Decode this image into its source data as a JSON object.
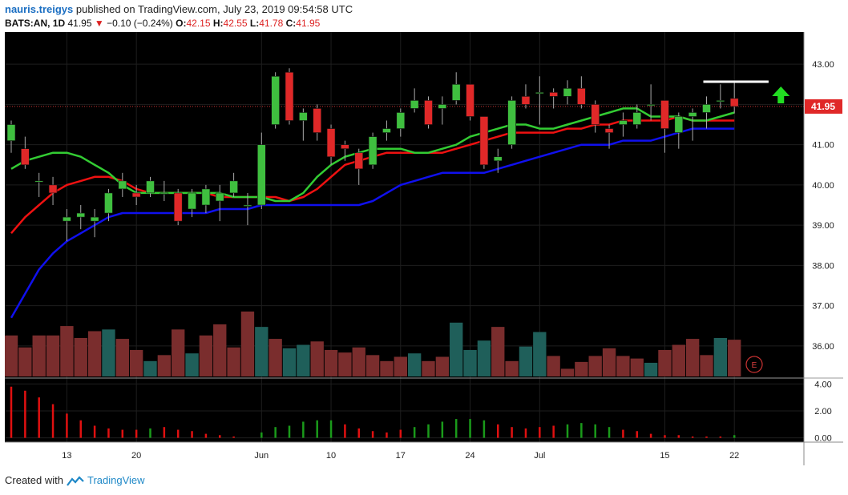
{
  "header": {
    "user": "nauris.treigys",
    "published_text": "published on TradingView.com, July 23, 2019 09:54:58 UTC",
    "symbol": "BATS:AN, 1D",
    "last": "41.95",
    "change": "−0.10 (−0.24%)",
    "open_label": "O:",
    "open": "42.15",
    "high_label": "H:",
    "high": "42.55",
    "low_label": "L:",
    "low": "41.78",
    "close_label": "C:",
    "close": "41.95"
  },
  "footer": {
    "created_with": "Created with",
    "brand": "TradingView"
  },
  "colors": {
    "background": "#000000",
    "up": "#3fbf3f",
    "down": "#e02828",
    "ma_fast": "#33cc33",
    "ma_mid": "#ee1111",
    "ma_slow": "#1010ee",
    "vol_up": "#1f5f5a",
    "vol_down": "#7a2d2d",
    "price_label_bg": "#e02828",
    "resistance_line": "#ffffff",
    "arrow": "#22dd22"
  },
  "chart_data": {
    "type": "candlestick",
    "price_axis": {
      "ticks": [
        "43.00",
        "42.00",
        "41.00",
        "40.00",
        "39.00",
        "38.00",
        "37.00",
        "36.00"
      ],
      "range": [
        35.2,
        43.8
      ]
    },
    "last_price_label": "41.95",
    "x_axis": {
      "labels": [
        {
          "i": 4,
          "text": "13"
        },
        {
          "i": 9,
          "text": "20"
        },
        {
          "i": 18,
          "text": "Jun"
        },
        {
          "i": 23,
          "text": "10"
        },
        {
          "i": 28,
          "text": "17"
        },
        {
          "i": 33,
          "text": "24"
        },
        {
          "i": 38,
          "text": "Jul"
        },
        {
          "i": 47,
          "text": "15"
        },
        {
          "i": 52,
          "text": "22"
        }
      ]
    },
    "candles": [
      [
        41.1,
        41.5,
        40.8,
        41.6
      ],
      [
        40.9,
        40.5,
        40.4,
        41.2
      ],
      [
        40.1,
        40.1,
        39.7,
        40.3
      ],
      [
        40.0,
        39.8,
        39.5,
        40.2
      ],
      [
        39.1,
        39.2,
        38.6,
        39.4
      ],
      [
        39.2,
        39.3,
        38.9,
        39.5
      ],
      [
        39.1,
        39.2,
        38.7,
        39.4
      ],
      [
        39.3,
        39.8,
        39.1,
        39.9
      ],
      [
        39.9,
        40.1,
        39.7,
        40.3
      ],
      [
        39.8,
        39.7,
        39.5,
        40.0
      ],
      [
        39.8,
        40.1,
        39.7,
        40.2
      ],
      [
        39.8,
        39.8,
        39.6,
        40.1
      ],
      [
        39.8,
        39.1,
        39.0,
        39.9
      ],
      [
        39.4,
        39.8,
        39.2,
        39.9
      ],
      [
        39.5,
        39.9,
        39.3,
        40.0
      ],
      [
        39.6,
        39.8,
        39.1,
        40.0
      ],
      [
        39.8,
        40.1,
        39.7,
        40.3
      ],
      [
        39.5,
        39.5,
        39.0,
        39.8
      ],
      [
        39.5,
        41.0,
        39.4,
        41.3
      ],
      [
        41.5,
        42.7,
        41.4,
        42.8
      ],
      [
        42.8,
        41.6,
        41.5,
        42.9
      ],
      [
        41.6,
        41.8,
        41.1,
        41.9
      ],
      [
        41.9,
        41.3,
        41.1,
        42.0
      ],
      [
        41.4,
        40.7,
        40.5,
        41.5
      ],
      [
        41.0,
        40.9,
        40.6,
        41.1
      ],
      [
        40.8,
        40.4,
        40.0,
        40.9
      ],
      [
        40.5,
        41.2,
        40.4,
        41.3
      ],
      [
        41.3,
        41.4,
        41.1,
        41.6
      ],
      [
        41.4,
        41.8,
        41.2,
        41.9
      ],
      [
        41.9,
        42.1,
        41.8,
        42.4
      ],
      [
        42.1,
        41.5,
        41.4,
        42.2
      ],
      [
        41.9,
        42.0,
        41.5,
        42.2
      ],
      [
        42.1,
        42.5,
        42.0,
        42.8
      ],
      [
        42.5,
        41.7,
        41.6,
        42.5
      ],
      [
        41.7,
        40.5,
        40.4,
        41.7
      ],
      [
        40.6,
        40.7,
        40.3,
        40.9
      ],
      [
        41.0,
        42.1,
        40.9,
        42.2
      ],
      [
        42.2,
        42.0,
        41.9,
        42.5
      ],
      [
        42.3,
        42.3,
        41.5,
        42.7
      ],
      [
        42.3,
        42.2,
        41.9,
        42.4
      ],
      [
        42.2,
        42.4,
        42.0,
        42.6
      ],
      [
        42.4,
        42.0,
        41.9,
        42.7
      ],
      [
        42.0,
        41.5,
        41.3,
        42.1
      ],
      [
        41.4,
        41.3,
        40.9,
        41.5
      ],
      [
        41.5,
        41.6,
        41.2,
        41.8
      ],
      [
        41.5,
        41.8,
        41.4,
        42.0
      ],
      [
        42.0,
        42.0,
        41.6,
        42.5
      ],
      [
        42.1,
        41.4,
        40.8,
        42.1
      ],
      [
        41.3,
        41.7,
        40.9,
        41.8
      ],
      [
        41.7,
        41.8,
        41.1,
        41.9
      ],
      [
        41.8,
        42.0,
        41.4,
        42.2
      ],
      [
        42.1,
        42.1,
        41.9,
        42.5
      ],
      [
        42.15,
        41.95,
        41.78,
        42.55
      ]
    ],
    "volume": {
      "range": [
        0,
        1.05
      ],
      "values": [
        0.48,
        0.34,
        0.48,
        0.48,
        0.59,
        0.45,
        0.53,
        0.55,
        0.44,
        0.31,
        0.18,
        0.25,
        0.55,
        0.27,
        0.48,
        0.61,
        0.34,
        0.76,
        0.58,
        0.44,
        0.33,
        0.37,
        0.41,
        0.31,
        0.28,
        0.34,
        0.25,
        0.18,
        0.23,
        0.27,
        0.18,
        0.23,
        0.63,
        0.31,
        0.42,
        0.58,
        0.18,
        0.35,
        0.52,
        0.24,
        0.09,
        0.17,
        0.24,
        0.33,
        0.24,
        0.21,
        0.16,
        0.31,
        0.37,
        0.44,
        0.25,
        0.45,
        0.43
      ]
    },
    "volume_colors": "dddddddudduddudddduduudddddddudduuudduuddddddduddddud",
    "ma_fast": [
      40.4,
      40.6,
      40.7,
      40.8,
      40.8,
      40.7,
      40.5,
      40.3,
      40.0,
      39.8,
      39.8,
      39.8,
      39.8,
      39.8,
      39.8,
      39.8,
      39.7,
      39.7,
      39.7,
      39.6,
      39.6,
      39.8,
      40.2,
      40.5,
      40.7,
      40.8,
      40.9,
      40.9,
      40.9,
      40.8,
      40.8,
      40.9,
      41.0,
      41.2,
      41.3,
      41.4,
      41.5,
      41.5,
      41.4,
      41.4,
      41.5,
      41.6,
      41.7,
      41.8,
      41.9,
      41.9,
      41.7,
      41.7,
      41.7,
      41.6,
      41.6,
      41.7,
      41.8
    ],
    "ma_mid": [
      38.8,
      39.2,
      39.5,
      39.8,
      40.0,
      40.1,
      40.2,
      40.2,
      40.1,
      39.9,
      39.8,
      39.8,
      39.8,
      39.8,
      39.8,
      39.7,
      39.7,
      39.7,
      39.7,
      39.7,
      39.6,
      39.7,
      39.9,
      40.2,
      40.5,
      40.6,
      40.7,
      40.8,
      40.8,
      40.8,
      40.8,
      40.8,
      40.9,
      41.0,
      41.1,
      41.2,
      41.3,
      41.3,
      41.3,
      41.3,
      41.4,
      41.4,
      41.5,
      41.5,
      41.6,
      41.6,
      41.6,
      41.6,
      41.7,
      41.6,
      41.6,
      41.6,
      41.6
    ],
    "ma_slow": [
      36.7,
      37.3,
      37.9,
      38.3,
      38.6,
      38.8,
      39.0,
      39.2,
      39.3,
      39.3,
      39.3,
      39.3,
      39.3,
      39.3,
      39.3,
      39.4,
      39.4,
      39.4,
      39.5,
      39.5,
      39.5,
      39.5,
      39.5,
      39.5,
      39.5,
      39.5,
      39.6,
      39.8,
      40.0,
      40.1,
      40.2,
      40.3,
      40.3,
      40.3,
      40.3,
      40.4,
      40.5,
      40.6,
      40.7,
      40.8,
      40.9,
      41.0,
      41.0,
      41.0,
      41.1,
      41.1,
      41.1,
      41.2,
      41.3,
      41.4,
      41.4,
      41.4,
      41.4
    ],
    "oscillator": {
      "ticks": [
        "4.00",
        "2.00",
        "0.00"
      ],
      "range": [
        -0.2,
        4.2
      ],
      "values": [
        3.8,
        3.5,
        3.0,
        2.5,
        1.8,
        1.3,
        0.9,
        0.7,
        0.6,
        0.6,
        0.7,
        0.8,
        0.6,
        0.5,
        0.3,
        0.2,
        0.1,
        0.0,
        0.4,
        0.8,
        0.9,
        1.2,
        1.3,
        1.3,
        1.0,
        0.7,
        0.5,
        0.4,
        0.6,
        0.8,
        1.0,
        1.2,
        1.4,
        1.4,
        1.3,
        1.0,
        0.8,
        0.7,
        0.8,
        0.9,
        1.0,
        1.1,
        1.0,
        0.8,
        0.6,
        0.5,
        0.3,
        0.2,
        0.2,
        0.1,
        0.1,
        0.1,
        0.2
      ],
      "colors": "dddddddddduddddddduuuuuuddddduuuuuuddddduuuuddddddddu"
    },
    "earnings_marker": "E"
  }
}
